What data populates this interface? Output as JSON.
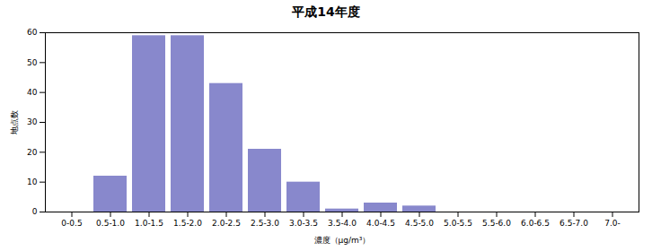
{
  "chart_data": {
    "type": "bar",
    "title": "平成14年度",
    "xlabel": "濃度（μg/m³）",
    "ylabel": "地点数",
    "categories": [
      "0-0.5",
      "0.5-1.0",
      "1.0-1.5",
      "1.5-2.0",
      "2.0-2.5",
      "2.5-3.0",
      "3.0-3.5",
      "3.5-4.0",
      "4.0-4.5",
      "4.5-5.0",
      "5.0-5.5",
      "5.5-6.0",
      "6.0-6.5",
      "6.5-7.0",
      "7.0-"
    ],
    "values": [
      0,
      12,
      59,
      59,
      43,
      21,
      10,
      1,
      3,
      2,
      0,
      0,
      0,
      0,
      0
    ],
    "color": "#8888cc",
    "ylim": [
      0,
      60
    ],
    "yticks": [
      0,
      10,
      20,
      30,
      40,
      50,
      60
    ],
    "grid": false
  }
}
